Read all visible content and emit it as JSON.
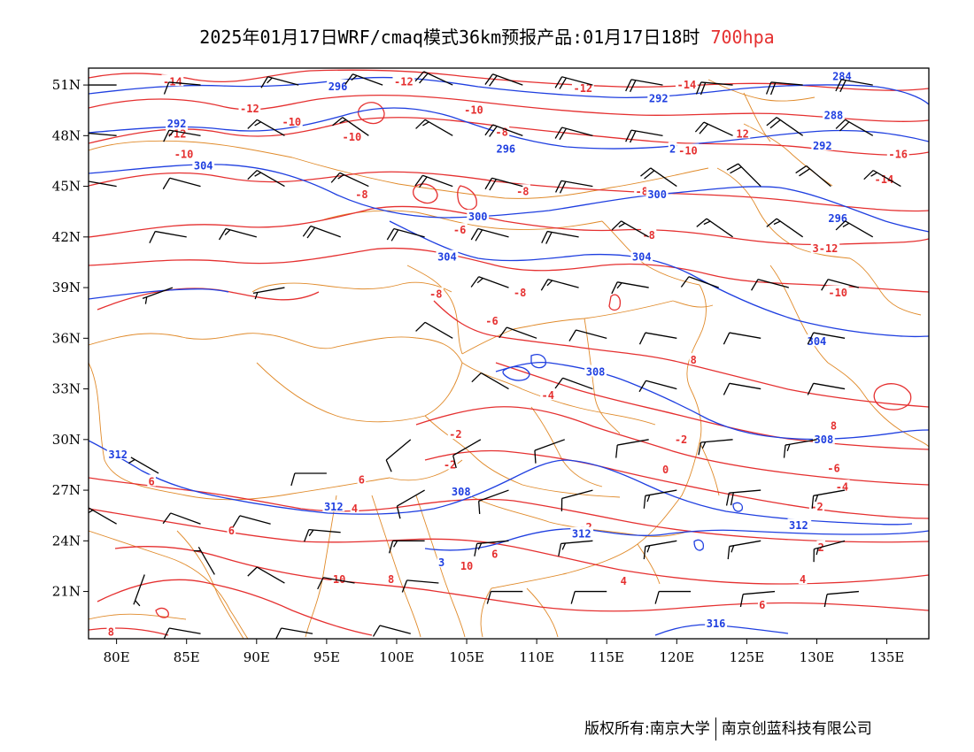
{
  "title": {
    "main": "2025年01月17日WRF/cmaq模式36km预报产品:01月17日18时",
    "level": "700hpa"
  },
  "colors": {
    "temperature": "#e53030",
    "geopotential": "#1f3fe0",
    "boundary": "#e08a2a",
    "wind": "#000000",
    "level_text": "#e53030"
  },
  "axes": {
    "lon_ticks": [
      "80E",
      "85E",
      "90E",
      "95E",
      "100E",
      "105E",
      "110E",
      "115E",
      "120E",
      "125E",
      "130E",
      "135E"
    ],
    "lat_ticks": [
      "51N",
      "48N",
      "45N",
      "42N",
      "39N",
      "36N",
      "33N",
      "30N",
      "27N",
      "24N",
      "21N"
    ],
    "lon_range": [
      78,
      138
    ],
    "lat_range": [
      18.2,
      52.0
    ]
  },
  "contours": {
    "temperature_labels": [
      {
        "t": "-14",
        "lon": 84.0,
        "lat": 51.2
      },
      {
        "t": "-12",
        "lon": 100.5,
        "lat": 51.2
      },
      {
        "t": "-12",
        "lon": 113.3,
        "lat": 50.8
      },
      {
        "t": "-14",
        "lon": 120.7,
        "lat": 51.0
      },
      {
        "t": "-12",
        "lon": 89.5,
        "lat": 49.6
      },
      {
        "t": "-10",
        "lon": 105.5,
        "lat": 49.5
      },
      {
        "t": "-10",
        "lon": 92.5,
        "lat": 48.8
      },
      {
        "t": "-8",
        "lon": 107.5,
        "lat": 48.2
      },
      {
        "t": "-12",
        "lon": 84.3,
        "lat": 48.1
      },
      {
        "t": "-10",
        "lon": 96.8,
        "lat": 47.9
      },
      {
        "t": "12",
        "lon": 124.7,
        "lat": 48.1
      },
      {
        "t": "-10",
        "lon": 120.8,
        "lat": 47.1
      },
      {
        "t": "-16",
        "lon": 135.8,
        "lat": 46.9
      },
      {
        "t": "-10",
        "lon": 84.8,
        "lat": 46.9
      },
      {
        "t": "-14",
        "lon": 134.8,
        "lat": 45.4
      },
      {
        "t": "-8",
        "lon": 97.5,
        "lat": 44.5
      },
      {
        "t": "-8",
        "lon": 109.0,
        "lat": 44.7
      },
      {
        "t": "-8",
        "lon": 117.5,
        "lat": 44.7
      },
      {
        "t": "-6",
        "lon": 104.5,
        "lat": 42.4
      },
      {
        "t": "-8",
        "lon": 118.0,
        "lat": 42.1
      },
      {
        "t": "3-12",
        "lon": 130.6,
        "lat": 41.3
      },
      {
        "t": "-8",
        "lon": 102.8,
        "lat": 38.6
      },
      {
        "t": "-8",
        "lon": 108.8,
        "lat": 38.7
      },
      {
        "t": "-10",
        "lon": 131.5,
        "lat": 38.7
      },
      {
        "t": "-6",
        "lon": 106.8,
        "lat": 37.0
      },
      {
        "t": "8",
        "lon": 121.2,
        "lat": 34.7
      },
      {
        "t": "-4",
        "lon": 110.8,
        "lat": 32.6
      },
      {
        "t": "-2",
        "lon": 104.2,
        "lat": 30.3
      },
      {
        "t": "-2",
        "lon": 120.3,
        "lat": 30.0
      },
      {
        "t": "8",
        "lon": 131.2,
        "lat": 30.8
      },
      {
        "t": "-2",
        "lon": 103.8,
        "lat": 28.5
      },
      {
        "t": "-6",
        "lon": 131.2,
        "lat": 28.3
      },
      {
        "t": "6",
        "lon": 97.5,
        "lat": 27.6
      },
      {
        "t": "0",
        "lon": 119.2,
        "lat": 28.2
      },
      {
        "t": "6",
        "lon": 82.5,
        "lat": 27.5
      },
      {
        "t": "4",
        "lon": 97.0,
        "lat": 25.9
      },
      {
        "t": "-4",
        "lon": 131.8,
        "lat": 27.2
      },
      {
        "t": "-2",
        "lon": 130.0,
        "lat": 26.0
      },
      {
        "t": "-2",
        "lon": 113.5,
        "lat": 24.8
      },
      {
        "t": "0",
        "lon": 129.3,
        "lat": 24.9
      },
      {
        "t": "6",
        "lon": 88.2,
        "lat": 24.6
      },
      {
        "t": "2",
        "lon": 130.3,
        "lat": 23.6
      },
      {
        "t": "6",
        "lon": 107.0,
        "lat": 23.2
      },
      {
        "t": "10",
        "lon": 105.0,
        "lat": 22.5
      },
      {
        "t": "10",
        "lon": 95.9,
        "lat": 21.7
      },
      {
        "t": "8",
        "lon": 99.6,
        "lat": 21.7
      },
      {
        "t": "4",
        "lon": 116.2,
        "lat": 21.6
      },
      {
        "t": "4",
        "lon": 129.0,
        "lat": 21.7
      },
      {
        "t": "6",
        "lon": 126.1,
        "lat": 20.2
      },
      {
        "t": "8",
        "lon": 79.6,
        "lat": 18.6
      }
    ],
    "geopotential_labels": [
      {
        "t": "296",
        "lon": 95.8,
        "lat": 50.9
      },
      {
        "t": "292",
        "lon": 118.7,
        "lat": 50.2
      },
      {
        "t": "284",
        "lon": 131.8,
        "lat": 51.5
      },
      {
        "t": "292",
        "lon": 84.3,
        "lat": 48.7
      },
      {
        "t": "288",
        "lon": 131.2,
        "lat": 49.2
      },
      {
        "t": "296",
        "lon": 107.8,
        "lat": 47.2
      },
      {
        "t": "2",
        "lon": 119.7,
        "lat": 47.2
      },
      {
        "t": "292",
        "lon": 130.4,
        "lat": 47.4
      },
      {
        "t": "304",
        "lon": 86.2,
        "lat": 46.2
      },
      {
        "t": "300",
        "lon": 118.6,
        "lat": 44.5
      },
      {
        "t": "300",
        "lon": 105.8,
        "lat": 43.2
      },
      {
        "t": "296",
        "lon": 131.5,
        "lat": 43.1
      },
      {
        "t": "304",
        "lon": 103.6,
        "lat": 40.8
      },
      {
        "t": "304",
        "lon": 117.5,
        "lat": 40.8
      },
      {
        "t": "304",
        "lon": 130.0,
        "lat": 35.8
      },
      {
        "t": "308",
        "lon": 114.2,
        "lat": 34.0
      },
      {
        "t": "308",
        "lon": 130.5,
        "lat": 30.0
      },
      {
        "t": "312",
        "lon": 80.1,
        "lat": 29.1
      },
      {
        "t": "308",
        "lon": 104.6,
        "lat": 26.9
      },
      {
        "t": "312",
        "lon": 95.5,
        "lat": 26.0
      },
      {
        "t": "312",
        "lon": 128.7,
        "lat": 24.9
      },
      {
        "t": "312",
        "lon": 113.2,
        "lat": 24.4
      },
      {
        "t": "3",
        "lon": 103.2,
        "lat": 22.7
      },
      {
        "t": "316",
        "lon": 122.8,
        "lat": 19.1
      }
    ]
  },
  "wind_barbs": [
    {
      "lon": 80,
      "lat": 51,
      "dir": 270,
      "spd": 12
    },
    {
      "lon": 86,
      "lat": 51,
      "dir": 275,
      "spd": 14
    },
    {
      "lon": 93,
      "lat": 51,
      "dir": 285,
      "spd": 16
    },
    {
      "lon": 99,
      "lat": 51,
      "dir": 290,
      "spd": 18
    },
    {
      "lon": 104,
      "lat": 51,
      "dir": 295,
      "spd": 20
    },
    {
      "lon": 109,
      "lat": 51,
      "dir": 290,
      "spd": 20
    },
    {
      "lon": 114,
      "lat": 51,
      "dir": 285,
      "spd": 22
    },
    {
      "lon": 119,
      "lat": 51,
      "dir": 280,
      "spd": 22
    },
    {
      "lon": 124,
      "lat": 51,
      "dir": 275,
      "spd": 24
    },
    {
      "lon": 129,
      "lat": 51,
      "dir": 275,
      "spd": 24
    },
    {
      "lon": 134,
      "lat": 51,
      "dir": 280,
      "spd": 22
    },
    {
      "lon": 80,
      "lat": 48,
      "dir": 275,
      "spd": 14
    },
    {
      "lon": 86,
      "lat": 48,
      "dir": 280,
      "spd": 18
    },
    {
      "lon": 92,
      "lat": 48,
      "dir": 300,
      "spd": 18
    },
    {
      "lon": 98,
      "lat": 48,
      "dir": 305,
      "spd": 16
    },
    {
      "lon": 104,
      "lat": 48,
      "dir": 300,
      "spd": 18
    },
    {
      "lon": 109,
      "lat": 48,
      "dir": 290,
      "spd": 20
    },
    {
      "lon": 114,
      "lat": 48,
      "dir": 285,
      "spd": 24
    },
    {
      "lon": 119,
      "lat": 48,
      "dir": 280,
      "spd": 24
    },
    {
      "lon": 124,
      "lat": 48,
      "dir": 295,
      "spd": 22
    },
    {
      "lon": 129,
      "lat": 48,
      "dir": 305,
      "spd": 22
    },
    {
      "lon": 134,
      "lat": 48,
      "dir": 300,
      "spd": 20
    },
    {
      "lon": 80,
      "lat": 45,
      "dir": 280,
      "spd": 10
    },
    {
      "lon": 86,
      "lat": 45,
      "dir": 285,
      "spd": 14
    },
    {
      "lon": 92,
      "lat": 45,
      "dir": 300,
      "spd": 18
    },
    {
      "lon": 98,
      "lat": 45,
      "dir": 295,
      "spd": 18
    },
    {
      "lon": 104,
      "lat": 45,
      "dir": 290,
      "spd": 20
    },
    {
      "lon": 109,
      "lat": 45,
      "dir": 285,
      "spd": 22
    },
    {
      "lon": 114,
      "lat": 45,
      "dir": 280,
      "spd": 22
    },
    {
      "lon": 120,
      "lat": 45,
      "dir": 305,
      "spd": 20
    },
    {
      "lon": 126,
      "lat": 45,
      "dir": 315,
      "spd": 20
    },
    {
      "lon": 131,
      "lat": 45,
      "dir": 310,
      "spd": 20
    },
    {
      "lon": 136,
      "lat": 45,
      "dir": 300,
      "spd": 18
    },
    {
      "lon": 85,
      "lat": 42,
      "dir": 280,
      "spd": 12
    },
    {
      "lon": 90,
      "lat": 42,
      "dir": 285,
      "spd": 16
    },
    {
      "lon": 96,
      "lat": 42,
      "dir": 290,
      "spd": 20
    },
    {
      "lon": 102,
      "lat": 42,
      "dir": 285,
      "spd": 20
    },
    {
      "lon": 108,
      "lat": 42,
      "dir": 285,
      "spd": 22
    },
    {
      "lon": 113,
      "lat": 42,
      "dir": 280,
      "spd": 20
    },
    {
      "lon": 118,
      "lat": 42,
      "dir": 300,
      "spd": 18
    },
    {
      "lon": 124,
      "lat": 42,
      "dir": 305,
      "spd": 18
    },
    {
      "lon": 129,
      "lat": 42,
      "dir": 305,
      "spd": 16
    },
    {
      "lon": 134,
      "lat": 42,
      "dir": 300,
      "spd": 18
    },
    {
      "lon": 84,
      "lat": 39,
      "dir": 250,
      "spd": 8
    },
    {
      "lon": 92,
      "lat": 39,
      "dir": 260,
      "spd": 8
    },
    {
      "lon": 108,
      "lat": 39,
      "dir": 290,
      "spd": 16
    },
    {
      "lon": 113,
      "lat": 39,
      "dir": 285,
      "spd": 16
    },
    {
      "lon": 118,
      "lat": 39,
      "dir": 280,
      "spd": 16
    },
    {
      "lon": 123,
      "lat": 39,
      "dir": 290,
      "spd": 14
    },
    {
      "lon": 128,
      "lat": 39,
      "dir": 285,
      "spd": 14
    },
    {
      "lon": 133,
      "lat": 39,
      "dir": 285,
      "spd": 12
    },
    {
      "lon": 104,
      "lat": 36,
      "dir": 300,
      "spd": 12
    },
    {
      "lon": 110,
      "lat": 36,
      "dir": 290,
      "spd": 14
    },
    {
      "lon": 115,
      "lat": 36,
      "dir": 285,
      "spd": 14
    },
    {
      "lon": 120,
      "lat": 36,
      "dir": 280,
      "spd": 14
    },
    {
      "lon": 126,
      "lat": 36,
      "dir": 280,
      "spd": 14
    },
    {
      "lon": 132,
      "lat": 36,
      "dir": 280,
      "spd": 12
    },
    {
      "lon": 108,
      "lat": 33,
      "dir": 300,
      "spd": 12
    },
    {
      "lon": 114,
      "lat": 33,
      "dir": 290,
      "spd": 14
    },
    {
      "lon": 120,
      "lat": 33,
      "dir": 285,
      "spd": 14
    },
    {
      "lon": 126,
      "lat": 33,
      "dir": 280,
      "spd": 14
    },
    {
      "lon": 132,
      "lat": 33,
      "dir": 280,
      "spd": 12
    },
    {
      "lon": 101,
      "lat": 30,
      "dir": 230,
      "spd": 10
    },
    {
      "lon": 106,
      "lat": 30,
      "dir": 240,
      "spd": 12
    },
    {
      "lon": 112,
      "lat": 30,
      "dir": 250,
      "spd": 12
    },
    {
      "lon": 118,
      "lat": 30,
      "dir": 260,
      "spd": 14
    },
    {
      "lon": 124,
      "lat": 30,
      "dir": 265,
      "spd": 18
    },
    {
      "lon": 130,
      "lat": 30,
      "dir": 260,
      "spd": 18
    },
    {
      "lon": 83,
      "lat": 28,
      "dir": 300,
      "spd": 8
    },
    {
      "lon": 95,
      "lat": 28,
      "dir": 270,
      "spd": 10
    },
    {
      "lon": 102,
      "lat": 27,
      "dir": 240,
      "spd": 14
    },
    {
      "lon": 108,
      "lat": 27,
      "dir": 250,
      "spd": 14
    },
    {
      "lon": 114,
      "lat": 27,
      "dir": 255,
      "spd": 14
    },
    {
      "lon": 120,
      "lat": 27,
      "dir": 260,
      "spd": 16
    },
    {
      "lon": 126,
      "lat": 27,
      "dir": 265,
      "spd": 20
    },
    {
      "lon": 132,
      "lat": 27,
      "dir": 260,
      "spd": 18
    },
    {
      "lon": 80,
      "lat": 25,
      "dir": 300,
      "spd": 8
    },
    {
      "lon": 86,
      "lat": 25,
      "dir": 290,
      "spd": 10
    },
    {
      "lon": 91,
      "lat": 25,
      "dir": 285,
      "spd": 12
    },
    {
      "lon": 96,
      "lat": 24.5,
      "dir": 275,
      "spd": 16
    },
    {
      "lon": 102,
      "lat": 24,
      "dir": 270,
      "spd": 18
    },
    {
      "lon": 108,
      "lat": 24,
      "dir": 265,
      "spd": 18
    },
    {
      "lon": 114,
      "lat": 24,
      "dir": 265,
      "spd": 18
    },
    {
      "lon": 120,
      "lat": 24,
      "dir": 260,
      "spd": 18
    },
    {
      "lon": 126,
      "lat": 24,
      "dir": 260,
      "spd": 18
    },
    {
      "lon": 132,
      "lat": 24,
      "dir": 255,
      "spd": 18
    },
    {
      "lon": 82,
      "lat": 22,
      "dir": 200,
      "spd": 6
    },
    {
      "lon": 87,
      "lat": 22,
      "dir": 330,
      "spd": 8
    },
    {
      "lon": 92,
      "lat": 21.5,
      "dir": 300,
      "spd": 10
    },
    {
      "lon": 97,
      "lat": 21.5,
      "dir": 280,
      "spd": 12
    },
    {
      "lon": 103,
      "lat": 21.5,
      "dir": 275,
      "spd": 14
    },
    {
      "lon": 109,
      "lat": 21,
      "dir": 270,
      "spd": 14
    },
    {
      "lon": 115,
      "lat": 21,
      "dir": 270,
      "spd": 14
    },
    {
      "lon": 121,
      "lat": 21,
      "dir": 270,
      "spd": 14
    },
    {
      "lon": 127,
      "lat": 21,
      "dir": 265,
      "spd": 14
    },
    {
      "lon": 133,
      "lat": 21,
      "dir": 265,
      "spd": 12
    },
    {
      "lon": 86,
      "lat": 18.5,
      "dir": 280,
      "spd": 10
    },
    {
      "lon": 94,
      "lat": 18.5,
      "dir": 280,
      "spd": 10
    },
    {
      "lon": 101,
      "lat": 18.5,
      "dir": 285,
      "spd": 10
    }
  ],
  "credit": {
    "left": "版权所有:南京大学",
    "right": "南京创蓝科技有限公司"
  }
}
